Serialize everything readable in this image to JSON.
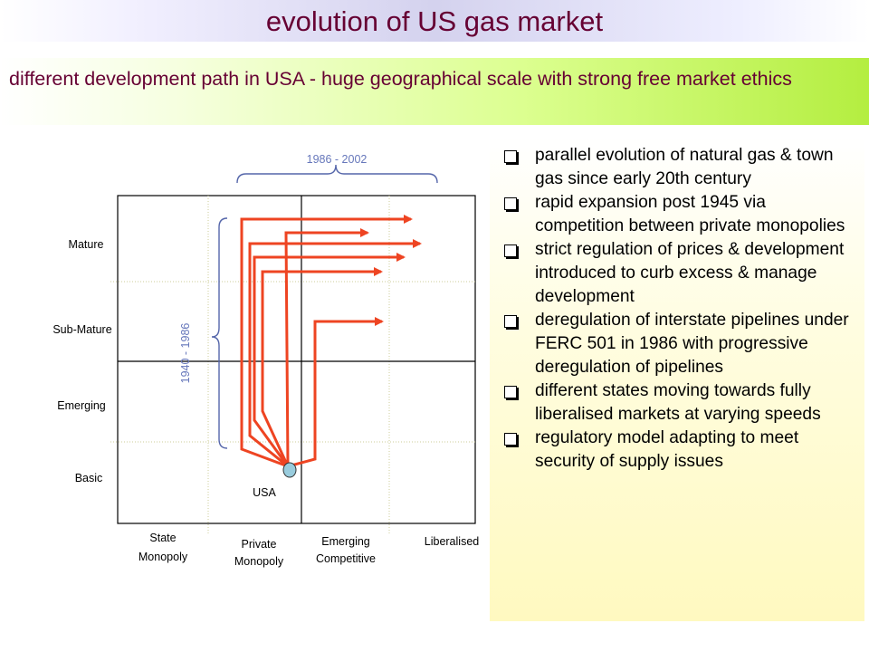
{
  "title": "evolution of US gas market",
  "subtitle": "different development path in USA - huge geographical scale with strong free market ethics",
  "diagram": {
    "y_levels": [
      "Mature",
      "Sub-Mature",
      "Emerging",
      "Basic"
    ],
    "x_stages": [
      {
        "line1": "State",
        "line2": "Monopoly"
      },
      {
        "line1": "Private",
        "line2": "Monopoly"
      },
      {
        "line1": "Emerging",
        "line2": "Competitive"
      },
      {
        "line1": "Liberalised",
        "line2": ""
      }
    ],
    "period_top": "1986 - 2002",
    "period_side": "1940 - 1986",
    "marker_label": "USA",
    "colors": {
      "arrow": "#ee4422",
      "brace": "#5566aa",
      "period_text": "#6677bb",
      "marker": "#99ccdd"
    }
  },
  "bullets": [
    "parallel evolution of natural gas & town gas since early 20th century",
    "rapid expansion post 1945 via competition between private monopolies",
    "strict regulation of prices & development introduced to curb excess & manage development",
    "deregulation of interstate pipelines under FERC 501 in 1986 with progressive deregulation of pipelines",
    "different states moving towards fully liberalised markets at varying speeds",
    "regulatory model adapting to meet security of supply issues"
  ]
}
